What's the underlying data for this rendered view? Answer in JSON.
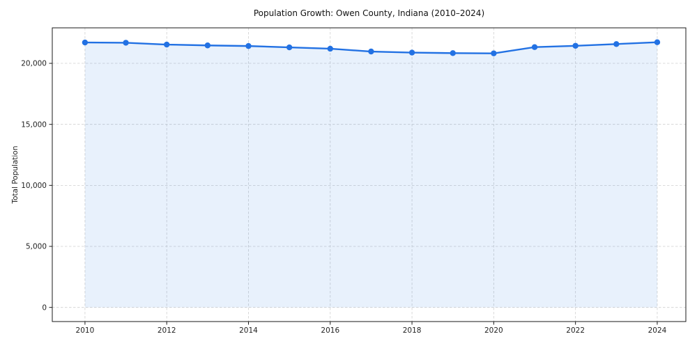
{
  "chart_data": {
    "type": "line",
    "title": "Population Growth: Owen County, Indiana (2010–2024)",
    "xlabel": "",
    "ylabel": "Total Population",
    "x": [
      2010,
      2011,
      2012,
      2013,
      2014,
      2015,
      2016,
      2017,
      2018,
      2019,
      2020,
      2021,
      2022,
      2023,
      2024
    ],
    "values": [
      21710,
      21690,
      21540,
      21470,
      21420,
      21310,
      21200,
      20970,
      20880,
      20840,
      20820,
      21330,
      21440,
      21580,
      21730
    ],
    "xticks": [
      2010,
      2012,
      2014,
      2016,
      2018,
      2020,
      2022,
      2024
    ],
    "xtick_labels": [
      "2010",
      "2012",
      "2014",
      "2016",
      "2018",
      "2020",
      "2022",
      "2024"
    ],
    "yticks": [
      0,
      5000,
      10000,
      15000,
      20000
    ],
    "ytick_labels": [
      "0",
      "5,000",
      "10,000",
      "15,000",
      "20,000"
    ],
    "xlim": [
      2009.2,
      2024.7
    ],
    "ylim": [
      -1160,
      22910
    ],
    "grid": true,
    "grid_style": "dashed",
    "legend": false,
    "area_baseline": 0,
    "line_color": "#2271e3",
    "fill_color": "#2271e3",
    "fill_opacity": 0.1,
    "grid_color": "#cfcfcf",
    "spine_color": "#1a1a1a",
    "text_color": "#1f1f1f"
  }
}
